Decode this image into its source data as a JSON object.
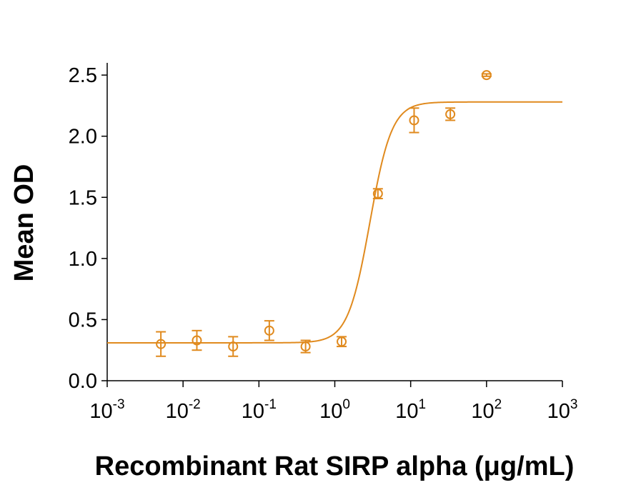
{
  "chart_data": {
    "type": "scatter",
    "y_label": "Mean OD",
    "x_label": "Recombinant Rat SIRP alpha (μg/mL)",
    "log_x": true,
    "color": "#e08a1e",
    "x": [
      0.0051,
      0.0152,
      0.0457,
      0.137,
      0.412,
      1.23,
      3.7,
      11.1,
      33.3,
      100
    ],
    "values": [
      0.3,
      0.33,
      0.28,
      0.41,
      0.28,
      0.32,
      1.53,
      2.13,
      2.18,
      2.5
    ],
    "errors": [
      0.1,
      0.08,
      0.08,
      0.08,
      0.05,
      0.04,
      0.04,
      0.1,
      0.05,
      0.01
    ],
    "fit": {
      "bottom": 0.31,
      "top": 2.28,
      "ec50": 2.9,
      "hill": 3
    },
    "xlim": [
      0.001,
      1000
    ],
    "xticks": [
      {
        "value": 0.001,
        "label": "10",
        "exponent": "-3"
      },
      {
        "value": 0.01,
        "label": "10",
        "exponent": "-2"
      },
      {
        "value": 0.1,
        "label": "10",
        "exponent": "-1"
      },
      {
        "value": 1,
        "label": "10",
        "exponent": "0"
      },
      {
        "value": 10,
        "label": "10",
        "exponent": "1"
      },
      {
        "value": 100,
        "label": "10",
        "exponent": "2"
      },
      {
        "value": 1000,
        "label": "10",
        "exponent": "3"
      }
    ],
    "ylim": [
      0,
      2.6
    ],
    "yticks": [
      {
        "value": 0,
        "label": "0.0"
      },
      0.5,
      {
        "value": 1,
        "label": "1.0"
      },
      1.5,
      {
        "value": 2,
        "label": "2.0"
      },
      2.5
    ]
  }
}
